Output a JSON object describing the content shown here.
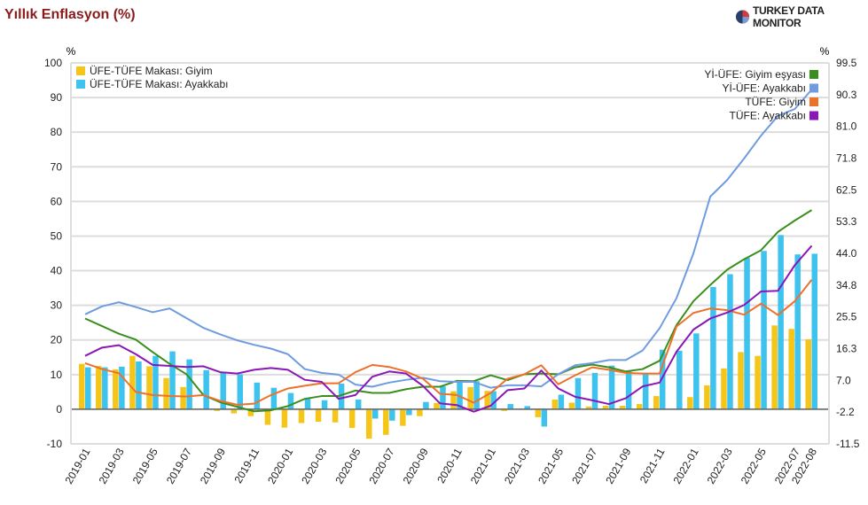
{
  "header": {
    "title": "Yıllık Enflasyon (%)",
    "logo_text": "TURKEY DATA MONITOR"
  },
  "chart_data": {
    "type": "bar+line",
    "title": "Yıllık Enflasyon (%)",
    "ylabel_left": "%",
    "ylabel_right": "%",
    "ylim_left": [
      -10,
      100
    ],
    "ylim_right": [
      -11.5,
      99.5
    ],
    "left_ticks": [
      "100",
      "90",
      "80",
      "70",
      "60",
      "50",
      "40",
      "30",
      "20",
      "10",
      "0",
      "-10"
    ],
    "right_ticks": [
      "99.5",
      "90.3",
      "81.0",
      "71.8",
      "62.5",
      "53.3",
      "44.0",
      "34.8",
      "25.5",
      "16.3",
      "7.0",
      "-2.2",
      "-11.5"
    ],
    "grid": true,
    "legend_left": "top-left",
    "legend_right": "top-right",
    "categories": [
      "2019-01",
      "2019-02",
      "2019-03",
      "2019-04",
      "2019-05",
      "2019-06",
      "2019-07",
      "2019-08",
      "2019-09",
      "2019-10",
      "2019-11",
      "2019-12",
      "2020-01",
      "2020-02",
      "2020-03",
      "2020-04",
      "2020-05",
      "2020-06",
      "2020-07",
      "2020-08",
      "2020-09",
      "2020-10",
      "2020-11",
      "2020-12",
      "2021-01",
      "2021-02",
      "2021-03",
      "2021-04",
      "2021-05",
      "2021-06",
      "2021-07",
      "2021-08",
      "2021-09",
      "2021-10",
      "2021-11",
      "2021-12",
      "2022-01",
      "2022-02",
      "2022-03",
      "2022-04",
      "2022-05",
      "2022-06",
      "2022-07",
      "2022-08"
    ],
    "tick_labels": [
      "2019-01",
      "2019-03",
      "2019-05",
      "2019-07",
      "2019-09",
      "2019-11",
      "2020-01",
      "2020-03",
      "2020-05",
      "2020-07",
      "2020-09",
      "2020-11",
      "2021-01",
      "2021-03",
      "2021-05",
      "2021-07",
      "2021-09",
      "2021-11",
      "2022-01",
      "2022-03",
      "2022-05",
      "2022-07",
      "2022-08"
    ],
    "bar_series": [
      {
        "name": "ÜFE-TÜFE Makası: Giyim",
        "color": "#f5c518",
        "values": [
          13.1,
          12.5,
          11.5,
          15.4,
          12.4,
          9.0,
          6.4,
          0.2,
          -0.5,
          -1.2,
          -2.0,
          -4.5,
          -5.3,
          -4.0,
          -3.6,
          -3.8,
          -5.4,
          -8.5,
          -7.4,
          -4.8,
          -2.0,
          1.8,
          5.2,
          6.4,
          5.3,
          -0.5,
          0.2,
          -2.3,
          2.8,
          1.9,
          0.8,
          1.0,
          1.0,
          1.5,
          3.8,
          0.1,
          3.5,
          6.9,
          11.8,
          16.5,
          15.4,
          24.2,
          23.2,
          20.2
        ]
      },
      {
        "name": "ÜFE-TÜFE Makası: Ayakkabı",
        "color": "#3ec3ef",
        "values": [
          12.1,
          12.1,
          12.3,
          13.8,
          15.4,
          16.7,
          14.4,
          11.3,
          10.7,
          10.1,
          7.7,
          6.2,
          4.7,
          3.1,
          2.6,
          7.4,
          2.8,
          -2.7,
          -3.3,
          -1.7,
          2.1,
          6.6,
          7.9,
          8.1,
          5.2,
          1.5,
          0.9,
          -5.0,
          4.2,
          9.0,
          10.5,
          12.6,
          10.9,
          10.5,
          17.2,
          16.9,
          21.9,
          35.3,
          39.0,
          43.7,
          45.7,
          50.3,
          44.7,
          44.9
        ]
      }
    ],
    "line_series": [
      {
        "name": "Yİ-ÜFE: Giyim eşyası",
        "color": "#3a8f1c",
        "values": [
          26.2,
          24.0,
          21.8,
          20.1,
          16.5,
          13.1,
          10.1,
          4.1,
          2.0,
          0.7,
          -0.6,
          -0.3,
          0.9,
          3.0,
          3.8,
          3.8,
          5.4,
          4.7,
          4.7,
          5.8,
          6.5,
          6.5,
          8.2,
          8.1,
          9.8,
          8.4,
          10.1,
          10.3,
          10.1,
          12.1,
          12.9,
          12.1,
          10.9,
          11.6,
          14.0,
          24.3,
          31.2,
          35.9,
          40.3,
          43.3,
          45.9,
          51.2,
          54.5,
          57.5
        ]
      },
      {
        "name": "Yİ-ÜFE: Ayakkabı",
        "color": "#6f9be0",
        "values": [
          27.4,
          29.7,
          30.9,
          29.5,
          28.0,
          29.1,
          26.3,
          23.5,
          21.6,
          19.9,
          18.6,
          17.5,
          15.9,
          11.6,
          10.5,
          10.0,
          7.1,
          6.5,
          7.7,
          8.5,
          9.1,
          8.1,
          7.9,
          7.9,
          6.2,
          6.9,
          6.9,
          6.6,
          10.1,
          12.7,
          13.3,
          14.2,
          14.2,
          17.0,
          23.4,
          32.1,
          45.0,
          61.4,
          66.2,
          72.4,
          79.0,
          84.7,
          86.7,
          92.3
        ]
      },
      {
        "name": "TÜFE: Giyim",
        "color": "#ee7129",
        "values": [
          13.3,
          11.6,
          10.4,
          5.0,
          4.1,
          3.8,
          3.7,
          4.1,
          2.4,
          1.3,
          1.6,
          4.1,
          6.0,
          6.8,
          7.5,
          7.5,
          10.7,
          12.8,
          12.2,
          10.9,
          8.8,
          4.5,
          4.1,
          1.9,
          4.7,
          8.8,
          10.1,
          12.7,
          7.2,
          9.8,
          12.1,
          11.4,
          10.5,
          10.3,
          10.3,
          23.9,
          27.8,
          29.1,
          28.6,
          27.3,
          30.5,
          27.2,
          31.2,
          37.4
        ]
      },
      {
        "name": "TÜFE: Ayakkabı",
        "color": "#8a16b8",
        "values": [
          15.4,
          17.8,
          18.5,
          15.9,
          12.8,
          12.5,
          12.2,
          12.4,
          10.7,
          10.3,
          11.4,
          11.9,
          11.4,
          8.5,
          7.9,
          3.0,
          4.1,
          9.4,
          10.9,
          10.3,
          6.7,
          1.7,
          1.2,
          -0.7,
          1.0,
          5.5,
          6.0,
          11.2,
          6.0,
          3.6,
          2.6,
          1.5,
          3.2,
          6.6,
          7.7,
          16.6,
          23.0,
          26.2,
          27.9,
          30.1,
          34.0,
          34.2,
          41.6,
          47.2
        ]
      }
    ]
  }
}
